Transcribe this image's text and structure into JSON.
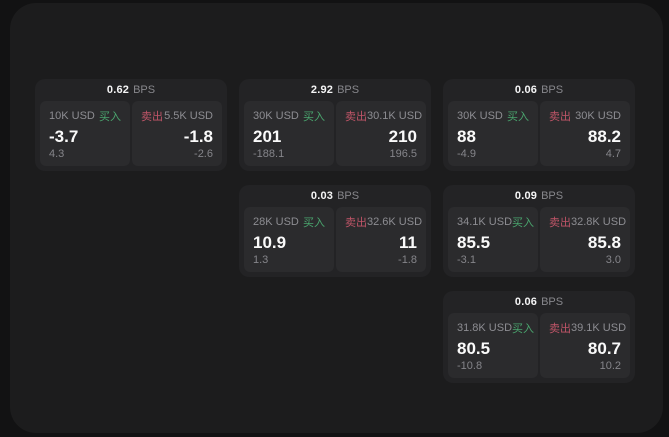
{
  "colors": {
    "background": "#121213",
    "panel": "#1c1c1d",
    "card": "#232325",
    "tile": "#2b2b2d",
    "buy_accent": "#4aa56e",
    "sell_accent": "#c05568",
    "muted_text": "#8d8d92",
    "primary_text": "#fafafa"
  },
  "labels": {
    "buy": "买入",
    "sell": "卖出",
    "bps": "BPS"
  },
  "groups": [
    {
      "bps": "0.62",
      "buy": {
        "amount": "10K USD",
        "price": "-3.7",
        "delta": "4.3"
      },
      "sell": {
        "amount": "5.5K USD",
        "price": "-1.8",
        "delta": "-2.6"
      }
    },
    {
      "bps": "2.92",
      "buy": {
        "amount": "30K USD",
        "price": "201",
        "delta": "-188.1"
      },
      "sell": {
        "amount": "30.1K USD",
        "price": "210",
        "delta": "196.5"
      }
    },
    {
      "bps": "0.06",
      "buy": {
        "amount": "30K USD",
        "price": "88",
        "delta": "-4.9"
      },
      "sell": {
        "amount": "30K USD",
        "price": "88.2",
        "delta": "4.7"
      }
    },
    {
      "bps": "0.03",
      "buy": {
        "amount": "28K USD",
        "price": "10.9",
        "delta": "1.3"
      },
      "sell": {
        "amount": "32.6K USD",
        "price": "11",
        "delta": "-1.8"
      }
    },
    {
      "bps": "0.09",
      "buy": {
        "amount": "34.1K USD",
        "price": "85.5",
        "delta": "-3.1"
      },
      "sell": {
        "amount": "32.8K USD",
        "price": "85.8",
        "delta": "3.0"
      }
    },
    {
      "bps": "0.06",
      "buy": {
        "amount": "31.8K USD",
        "price": "80.5",
        "delta": "-10.8"
      },
      "sell": {
        "amount": "39.1K USD",
        "price": "80.7",
        "delta": "10.2"
      }
    }
  ]
}
